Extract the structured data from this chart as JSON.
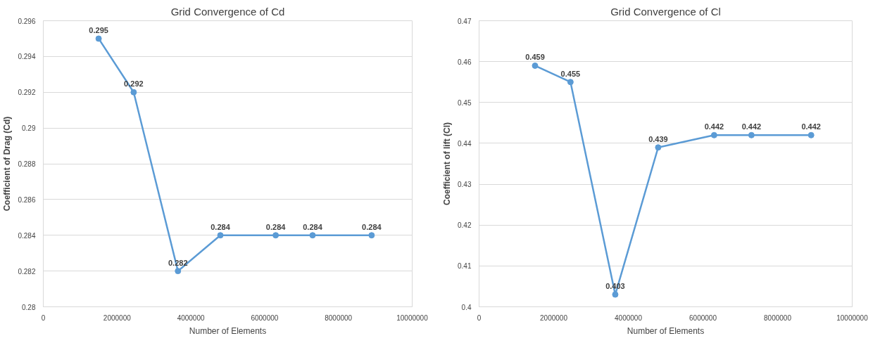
{
  "chart_data": [
    {
      "type": "line",
      "title": "Grid Convergence of Cd",
      "xlabel": "Number of Elements",
      "ylabel": "Coefficient of Drag (Cd)",
      "x": [
        1500000,
        2450000,
        3650000,
        4800000,
        6300000,
        7300000,
        8900000
      ],
      "series": [
        {
          "color": "#5b9bd5",
          "values": [
            0.295,
            0.292,
            0.282,
            0.284,
            0.284,
            0.284,
            0.284
          ]
        }
      ],
      "xlim": [
        0,
        10000000
      ],
      "xticks": [
        0,
        2000000,
        4000000,
        6000000,
        8000000,
        10000000
      ],
      "ylim": [
        0.28,
        0.296
      ],
      "yticks": [
        0.28,
        0.282,
        0.284,
        0.286,
        0.288,
        0.29,
        0.292,
        0.294,
        0.296
      ],
      "grid": "y",
      "marker": "circle",
      "line_style": "solid",
      "data_labels": true
    },
    {
      "type": "line",
      "title": "Grid Convergence of Cl",
      "xlabel": "Number of Elements",
      "ylabel": "Coefficient of lift (Cl)",
      "x": [
        1500000,
        2450000,
        3650000,
        4800000,
        6300000,
        7300000,
        8900000
      ],
      "series": [
        {
          "color": "#5b9bd5",
          "values": [
            0.459,
            0.455,
            0.403,
            0.439,
            0.442,
            0.442,
            0.442
          ]
        }
      ],
      "xlim": [
        0,
        10000000
      ],
      "xticks": [
        0,
        2000000,
        4000000,
        6000000,
        8000000,
        10000000
      ],
      "ylim": [
        0.4,
        0.47
      ],
      "yticks": [
        0.4,
        0.41,
        0.42,
        0.43,
        0.44,
        0.45,
        0.46,
        0.47
      ],
      "grid": "y",
      "marker": "circle",
      "line_style": "solid",
      "data_labels": true
    }
  ]
}
